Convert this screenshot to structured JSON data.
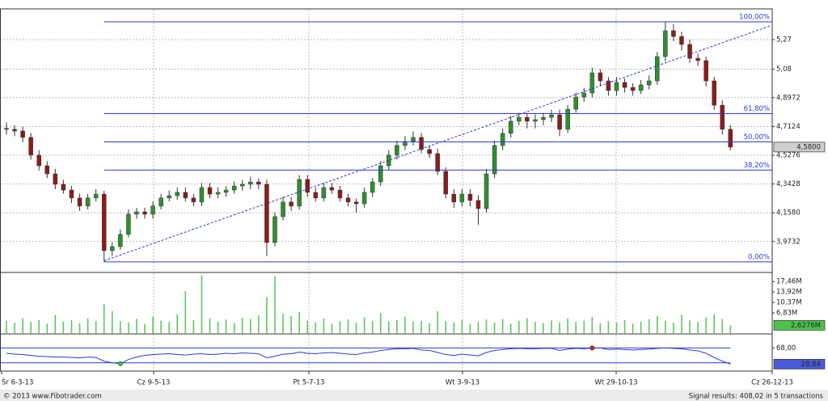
{
  "chart_data": [
    {
      "type": "candlestick",
      "open": [
        4.7,
        4.694,
        4.683,
        4.642,
        4.528,
        4.46,
        4.408,
        4.341,
        4.304,
        4.253,
        4.201,
        4.253,
        4.278,
        3.915,
        3.941,
        4.019,
        4.149,
        4.164,
        4.149,
        4.201,
        4.253,
        4.268,
        4.289,
        4.253,
        4.227,
        4.32,
        4.278,
        4.289,
        4.304,
        4.33,
        4.341,
        4.356,
        4.341,
        3.967,
        4.133,
        4.227,
        4.201,
        4.372,
        4.289,
        4.253,
        4.32,
        4.304,
        4.253,
        4.227,
        4.216,
        4.289,
        4.356,
        4.46,
        4.528,
        4.59,
        4.616,
        4.642,
        4.564,
        4.538,
        4.424,
        4.278,
        4.227,
        4.278,
        4.237,
        4.185,
        4.408,
        4.59,
        4.668,
        4.746,
        4.771,
        4.746,
        4.756,
        4.771,
        4.787,
        4.694,
        4.823,
        4.901,
        4.927,
        5.057,
        5.005,
        4.943,
        4.995,
        4.963,
        4.943,
        4.979,
        5.005,
        5.161,
        5.327,
        5.29,
        5.239,
        5.15,
        5.135,
        5.005,
        4.849,
        4.694
      ],
      "high": [
        4.74,
        4.72,
        4.71,
        4.67,
        4.56,
        4.49,
        4.44,
        4.37,
        4.33,
        4.28,
        4.28,
        4.31,
        4.3,
        3.97,
        4.05,
        4.18,
        4.19,
        4.19,
        4.23,
        4.28,
        4.3,
        4.32,
        4.32,
        4.28,
        4.35,
        4.35,
        4.32,
        4.33,
        4.36,
        4.37,
        4.39,
        4.38,
        4.37,
        4.16,
        4.26,
        4.26,
        4.4,
        4.4,
        4.32,
        4.35,
        4.35,
        4.33,
        4.28,
        4.25,
        4.32,
        4.38,
        4.49,
        4.56,
        4.62,
        4.65,
        4.68,
        4.67,
        4.59,
        4.57,
        4.45,
        4.31,
        4.31,
        4.31,
        4.27,
        4.44,
        4.62,
        4.7,
        4.78,
        4.8,
        4.8,
        4.79,
        4.8,
        4.82,
        4.82,
        4.85,
        4.93,
        4.96,
        5.09,
        5.08,
        5.03,
        5.03,
        5.02,
        4.99,
        5.01,
        5.04,
        5.19,
        5.384,
        5.37,
        5.32,
        5.27,
        5.18,
        5.16,
        5.03,
        4.88,
        4.72
      ],
      "low": [
        4.66,
        4.65,
        4.61,
        4.5,
        4.43,
        4.38,
        4.31,
        4.28,
        4.22,
        4.17,
        4.18,
        4.23,
        3.843,
        3.88,
        3.92,
        4.0,
        4.12,
        4.12,
        4.12,
        4.18,
        4.23,
        4.24,
        4.23,
        4.2,
        4.2,
        4.25,
        4.25,
        4.26,
        4.28,
        4.3,
        4.31,
        4.31,
        3.88,
        3.94,
        4.11,
        4.17,
        4.18,
        4.26,
        4.23,
        4.23,
        4.28,
        4.23,
        4.2,
        4.16,
        4.19,
        4.26,
        4.33,
        4.43,
        4.5,
        4.56,
        4.59,
        4.54,
        4.51,
        4.4,
        4.25,
        4.19,
        4.2,
        4.2,
        4.08,
        4.16,
        4.38,
        4.56,
        4.64,
        4.72,
        4.7,
        4.7,
        4.72,
        4.74,
        4.65,
        4.67,
        4.8,
        4.87,
        4.9,
        4.97,
        4.91,
        4.91,
        4.93,
        4.91,
        4.92,
        4.95,
        4.98,
        5.13,
        5.26,
        5.2,
        5.12,
        5.1,
        4.97,
        4.82,
        4.66,
        4.56
      ],
      "close": [
        4.694,
        4.683,
        4.642,
        4.528,
        4.46,
        4.408,
        4.341,
        4.304,
        4.253,
        4.201,
        4.253,
        4.278,
        3.915,
        3.941,
        4.019,
        4.149,
        4.164,
        4.149,
        4.201,
        4.253,
        4.268,
        4.289,
        4.253,
        4.227,
        4.32,
        4.278,
        4.289,
        4.304,
        4.33,
        4.341,
        4.356,
        4.341,
        3.967,
        4.133,
        4.227,
        4.201,
        4.372,
        4.289,
        4.253,
        4.32,
        4.304,
        4.253,
        4.227,
        4.216,
        4.289,
        4.356,
        4.46,
        4.528,
        4.59,
        4.616,
        4.642,
        4.564,
        4.538,
        4.424,
        4.278,
        4.227,
        4.278,
        4.237,
        4.185,
        4.408,
        4.59,
        4.668,
        4.746,
        4.771,
        4.746,
        4.756,
        4.771,
        4.787,
        4.694,
        4.823,
        4.901,
        4.927,
        5.057,
        5.005,
        4.943,
        4.995,
        4.963,
        4.943,
        4.979,
        5.005,
        5.161,
        5.327,
        5.29,
        5.239,
        5.15,
        5.135,
        5.005,
        4.849,
        4.694,
        4.58
      ],
      "up_color": "#2f8f2f",
      "down_color": "#8b1c1c",
      "ylim": [
        3.78,
        5.462
      ],
      "yticks": [
        {
          "value": 5.27,
          "label": "5,27"
        },
        {
          "value": 5.08,
          "label": "5,08"
        },
        {
          "value": 4.8972,
          "label": "4,8972"
        },
        {
          "value": 4.7124,
          "label": "4,7124"
        },
        {
          "value": 4.5276,
          "label": "4,5276"
        },
        {
          "value": 4.3428,
          "label": "4,3428"
        },
        {
          "value": 4.158,
          "label": "4,1580"
        },
        {
          "value": 3.9732,
          "label": "3,9732"
        }
      ],
      "grid": true,
      "fib_start": 12,
      "fib_levels": [
        {
          "value": 5.384,
          "label": "100,00%"
        },
        {
          "value": 4.795,
          "label": "61,80%"
        },
        {
          "value": 4.6135,
          "label": "50,00%"
        },
        {
          "value": 4.432,
          "label": "38,20%"
        },
        {
          "value": 3.843,
          "label": "0,00%"
        }
      ],
      "fib_color": "#2a3bd1",
      "trendline": {
        "x": [
          12,
          94
        ],
        "y": [
          3.85,
          5.36
        ]
      },
      "current": {
        "value": 4.58,
        "label": "4,5800"
      }
    },
    {
      "type": "bar",
      "color": "#5cc85c",
      "values": [
        4.2,
        3.5,
        5.1,
        3.8,
        4.4,
        3.2,
        6.1,
        3.9,
        4.5,
        3.3,
        5.0,
        4.1,
        9.8,
        7.5,
        4.0,
        3.6,
        4.8,
        3.1,
        5.5,
        4.2,
        3.7,
        6.3,
        14.2,
        4.5,
        19.5,
        5.0,
        3.9,
        4.6,
        3.4,
        5.2,
        4.8,
        6.0,
        12.1,
        19.3,
        6.5,
        5.8,
        7.2,
        4.3,
        3.6,
        4.9,
        3.2,
        4.0,
        4.7,
        3.5,
        5.3,
        4.1,
        6.8,
        3.9,
        4.5,
        5.6,
        3.8,
        4.2,
        3.3,
        7.4,
        4.0,
        3.6,
        4.4,
        3.1,
        3.9,
        4.6,
        3.5,
        4.8,
        3.2,
        4.1,
        5.0,
        3.7,
        3.4,
        4.3,
        3.6,
        4.9,
        3.8,
        4.2,
        5.5,
        3.3,
        4.0,
        3.6,
        4.4,
        3.2,
        3.9,
        4.7,
        5.8,
        4.1,
        3.5,
        6.2,
        4.3,
        3.7,
        5.2,
        6.4,
        4.8,
        2.6276
      ],
      "ylim": [
        0,
        20.26
      ],
      "yticks": [
        {
          "value": 17.46,
          "label": "17,46M"
        },
        {
          "value": 13.92,
          "label": "13,92M"
        },
        {
          "value": 10.37,
          "label": "10,37M"
        },
        {
          "value": 6.83,
          "label": "6,83M"
        }
      ],
      "current": {
        "value": 2.6276,
        "label": "2,6276M"
      }
    },
    {
      "type": "line",
      "color": "#2a3bd1",
      "values": [
        55,
        53,
        52,
        50,
        48,
        47,
        46,
        46,
        45,
        44,
        46,
        45,
        36,
        32,
        30,
        40,
        46,
        50,
        52,
        53,
        54,
        52,
        51,
        53,
        54,
        52,
        53,
        55,
        54,
        56,
        55,
        54,
        44,
        48,
        53,
        54,
        58,
        55,
        54,
        56,
        57,
        55,
        53,
        52,
        56,
        58,
        62,
        64,
        66,
        66,
        67,
        63,
        62,
        57,
        52,
        50,
        53,
        51,
        49,
        57,
        62,
        64,
        66,
        67,
        66,
        66,
        67,
        67,
        62,
        65,
        67,
        66,
        68,
        68,
        64,
        65,
        64,
        63,
        64,
        65,
        67,
        68,
        67,
        66,
        63,
        61,
        55,
        45,
        36,
        28.84
      ],
      "ylim": [
        14,
        100
      ],
      "yticks": [
        {
          "value": 68,
          "label": "68,00"
        }
      ],
      "level_lines": [
        68,
        32
      ],
      "signal_points": [
        {
          "index": 14,
          "color": "#3cc03c"
        },
        {
          "index": 72,
          "color": "#d02020"
        }
      ],
      "current": {
        "value": 28.84,
        "label": "28,84"
      }
    }
  ],
  "x_axis": {
    "labels": [
      "Śr 6-3-13",
      "Cz 9-5-13",
      "Pt 5-7-13",
      "Wt 3-9-13",
      "Wt 29-10-13",
      "Cz 26-12-13"
    ]
  },
  "footer": {
    "copyright": "© 2013 www.Fibotrader.com",
    "signals": "Signal results: 408,02 in 5 transactions"
  }
}
